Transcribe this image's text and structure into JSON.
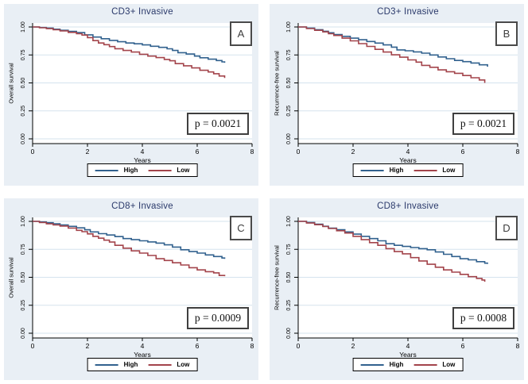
{
  "styles": {
    "panel_bg": "#e9eff5",
    "plot_bg": "#ffffff",
    "grid_color": "#d5e3ee",
    "title_color": "#2b3a6b",
    "axis_color": "#000000",
    "high_color": "#31618e",
    "low_color": "#a3444b"
  },
  "legend": {
    "high_label": "High",
    "low_label": "Low"
  },
  "chart_data": {
    "type": "line",
    "subtype": "kaplan-meier-step",
    "layout": "2x2-grid",
    "xlabel": "Years",
    "xlim": [
      0,
      8
    ],
    "x_ticks": [
      0,
      2,
      4,
      6,
      8
    ],
    "ylim": [
      0,
      1
    ],
    "y_tick_values": [
      0,
      0.25,
      0.5,
      0.75,
      1
    ],
    "y_ticks": [
      "0.00",
      "0.25",
      "0.50",
      "0.75",
      "1.00"
    ],
    "grid": true,
    "legend_entries": [
      "High",
      "Low"
    ],
    "legend_position": "bottom-center",
    "panels": [
      {
        "letter": "A",
        "title": "CD3+ Invasive",
        "ylabel": "Overall survival",
        "p_value": "p = 0.0021",
        "series": [
          {
            "name": "High",
            "color": "#31618e",
            "points": [
              [
                0,
                1
              ],
              [
                0.25,
                0.995
              ],
              [
                0.5,
                0.99
              ],
              [
                0.75,
                0.98
              ],
              [
                1,
                0.97
              ],
              [
                1.3,
                0.96
              ],
              [
                1.6,
                0.95
              ],
              [
                1.9,
                0.93
              ],
              [
                2.2,
                0.91
              ],
              [
                2.5,
                0.895
              ],
              [
                2.8,
                0.88
              ],
              [
                3.1,
                0.868
              ],
              [
                3.4,
                0.857
              ],
              [
                3.7,
                0.85
              ],
              [
                4,
                0.84
              ],
              [
                4.3,
                0.828
              ],
              [
                4.6,
                0.818
              ],
              [
                4.9,
                0.805
              ],
              [
                5.1,
                0.79
              ],
              [
                5.3,
                0.77
              ],
              [
                5.6,
                0.758
              ],
              [
                5.9,
                0.74
              ],
              [
                6.1,
                0.725
              ],
              [
                6.4,
                0.712
              ],
              [
                6.7,
                0.7
              ],
              [
                6.9,
                0.688
              ],
              [
                7,
                0.68
              ]
            ]
          },
          {
            "name": "Low",
            "color": "#a3444b",
            "points": [
              [
                0,
                1
              ],
              [
                0.25,
                0.993
              ],
              [
                0.5,
                0.985
              ],
              [
                0.75,
                0.975
              ],
              [
                1,
                0.965
              ],
              [
                1.3,
                0.952
              ],
              [
                1.6,
                0.94
              ],
              [
                1.8,
                0.928
              ],
              [
                2,
                0.905
              ],
              [
                2.2,
                0.878
              ],
              [
                2.4,
                0.857
              ],
              [
                2.6,
                0.842
              ],
              [
                2.8,
                0.825
              ],
              [
                3,
                0.806
              ],
              [
                3.3,
                0.79
              ],
              [
                3.6,
                0.776
              ],
              [
                3.9,
                0.756
              ],
              [
                4.2,
                0.74
              ],
              [
                4.5,
                0.726
              ],
              [
                4.8,
                0.71
              ],
              [
                5,
                0.698
              ],
              [
                5.2,
                0.672
              ],
              [
                5.5,
                0.653
              ],
              [
                5.8,
                0.634
              ],
              [
                6.1,
                0.613
              ],
              [
                6.4,
                0.598
              ],
              [
                6.6,
                0.582
              ],
              [
                6.8,
                0.562
              ],
              [
                7,
                0.545
              ]
            ]
          }
        ]
      },
      {
        "letter": "B",
        "title": "CD3+ Invasive",
        "ylabel": "Recurrence-free survival",
        "p_value": "p = 0.0021",
        "series": [
          {
            "name": "High",
            "color": "#31618e",
            "points": [
              [
                0,
                1
              ],
              [
                0.3,
                0.99
              ],
              [
                0.6,
                0.976
              ],
              [
                0.9,
                0.962
              ],
              [
                1.1,
                0.948
              ],
              [
                1.3,
                0.932
              ],
              [
                1.6,
                0.916
              ],
              [
                1.9,
                0.9
              ],
              [
                2.2,
                0.886
              ],
              [
                2.5,
                0.87
              ],
              [
                2.8,
                0.856
              ],
              [
                3.1,
                0.84
              ],
              [
                3.4,
                0.82
              ],
              [
                3.6,
                0.795
              ],
              [
                3.9,
                0.787
              ],
              [
                4.2,
                0.777
              ],
              [
                4.5,
                0.766
              ],
              [
                4.8,
                0.75
              ],
              [
                5.1,
                0.732
              ],
              [
                5.4,
                0.716
              ],
              [
                5.7,
                0.701
              ],
              [
                6,
                0.69
              ],
              [
                6.3,
                0.678
              ],
              [
                6.6,
                0.662
              ],
              [
                6.9,
                0.645
              ]
            ]
          },
          {
            "name": "Low",
            "color": "#a3444b",
            "points": [
              [
                0,
                1
              ],
              [
                0.3,
                0.986
              ],
              [
                0.6,
                0.97
              ],
              [
                0.9,
                0.956
              ],
              [
                1.1,
                0.94
              ],
              [
                1.3,
                0.924
              ],
              [
                1.6,
                0.9
              ],
              [
                1.9,
                0.876
              ],
              [
                2.2,
                0.851
              ],
              [
                2.5,
                0.826
              ],
              [
                2.8,
                0.8
              ],
              [
                3.1,
                0.776
              ],
              [
                3.4,
                0.751
              ],
              [
                3.7,
                0.73
              ],
              [
                4,
                0.706
              ],
              [
                4.3,
                0.686
              ],
              [
                4.5,
                0.657
              ],
              [
                4.8,
                0.64
              ],
              [
                5.1,
                0.616
              ],
              [
                5.4,
                0.6
              ],
              [
                5.7,
                0.586
              ],
              [
                6,
                0.566
              ],
              [
                6.3,
                0.546
              ],
              [
                6.6,
                0.526
              ],
              [
                6.8,
                0.5
              ]
            ]
          }
        ]
      },
      {
        "letter": "C",
        "title": "CD8+ Invasive",
        "ylabel": "Overall survival",
        "p_value": "p = 0.0009",
        "series": [
          {
            "name": "High",
            "color": "#31618e",
            "points": [
              [
                0,
                1
              ],
              [
                0.25,
                0.995
              ],
              [
                0.5,
                0.988
              ],
              [
                0.75,
                0.978
              ],
              [
                1,
                0.968
              ],
              [
                1.3,
                0.955
              ],
              [
                1.6,
                0.942
              ],
              [
                1.9,
                0.925
              ],
              [
                2.1,
                0.906
              ],
              [
                2.4,
                0.89
              ],
              [
                2.7,
                0.878
              ],
              [
                3,
                0.864
              ],
              [
                3.3,
                0.846
              ],
              [
                3.6,
                0.836
              ],
              [
                3.9,
                0.826
              ],
              [
                4.2,
                0.816
              ],
              [
                4.5,
                0.806
              ],
              [
                4.8,
                0.79
              ],
              [
                5.1,
                0.77
              ],
              [
                5.4,
                0.746
              ],
              [
                5.7,
                0.73
              ],
              [
                6,
                0.716
              ],
              [
                6.3,
                0.7
              ],
              [
                6.6,
                0.686
              ],
              [
                6.9,
                0.672
              ],
              [
                7,
                0.665
              ]
            ]
          },
          {
            "name": "Low",
            "color": "#a3444b",
            "points": [
              [
                0,
                1
              ],
              [
                0.25,
                0.99
              ],
              [
                0.5,
                0.978
              ],
              [
                0.75,
                0.968
              ],
              [
                1,
                0.958
              ],
              [
                1.3,
                0.94
              ],
              [
                1.6,
                0.92
              ],
              [
                1.8,
                0.908
              ],
              [
                2,
                0.888
              ],
              [
                2.2,
                0.866
              ],
              [
                2.4,
                0.85
              ],
              [
                2.6,
                0.832
              ],
              [
                2.8,
                0.815
              ],
              [
                3,
                0.786
              ],
              [
                3.3,
                0.76
              ],
              [
                3.6,
                0.736
              ],
              [
                3.9,
                0.716
              ],
              [
                4.2,
                0.695
              ],
              [
                4.5,
                0.666
              ],
              [
                4.8,
                0.65
              ],
              [
                5.1,
                0.63
              ],
              [
                5.4,
                0.61
              ],
              [
                5.7,
                0.586
              ],
              [
                6,
                0.566
              ],
              [
                6.3,
                0.55
              ],
              [
                6.6,
                0.54
              ],
              [
                6.8,
                0.516
              ],
              [
                7,
                0.51
              ]
            ]
          }
        ]
      },
      {
        "letter": "D",
        "title": "CD8+ Invasive",
        "ylabel": "Recurrence-free survival",
        "p_value": "p = 0.0008",
        "series": [
          {
            "name": "High",
            "color": "#31618e",
            "points": [
              [
                0,
                1
              ],
              [
                0.3,
                0.99
              ],
              [
                0.6,
                0.975
              ],
              [
                0.9,
                0.956
              ],
              [
                1.1,
                0.94
              ],
              [
                1.4,
                0.925
              ],
              [
                1.7,
                0.906
              ],
              [
                2,
                0.886
              ],
              [
                2.3,
                0.866
              ],
              [
                2.6,
                0.846
              ],
              [
                2.9,
                0.826
              ],
              [
                3.2,
                0.8
              ],
              [
                3.5,
                0.786
              ],
              [
                3.8,
                0.776
              ],
              [
                4.1,
                0.766
              ],
              [
                4.4,
                0.756
              ],
              [
                4.7,
                0.746
              ],
              [
                5,
                0.726
              ],
              [
                5.3,
                0.706
              ],
              [
                5.6,
                0.686
              ],
              [
                5.9,
                0.666
              ],
              [
                6.2,
                0.656
              ],
              [
                6.5,
                0.64
              ],
              [
                6.8,
                0.626
              ],
              [
                6.9,
                0.62
              ]
            ]
          },
          {
            "name": "Low",
            "color": "#a3444b",
            "points": [
              [
                0,
                1
              ],
              [
                0.3,
                0.985
              ],
              [
                0.6,
                0.97
              ],
              [
                0.9,
                0.954
              ],
              [
                1.1,
                0.936
              ],
              [
                1.4,
                0.916
              ],
              [
                1.7,
                0.896
              ],
              [
                2,
                0.866
              ],
              [
                2.3,
                0.836
              ],
              [
                2.6,
                0.81
              ],
              [
                2.9,
                0.786
              ],
              [
                3.2,
                0.756
              ],
              [
                3.5,
                0.73
              ],
              [
                3.8,
                0.71
              ],
              [
                4.1,
                0.676
              ],
              [
                4.4,
                0.646
              ],
              [
                4.7,
                0.616
              ],
              [
                5,
                0.59
              ],
              [
                5.3,
                0.566
              ],
              [
                5.6,
                0.546
              ],
              [
                5.9,
                0.526
              ],
              [
                6.2,
                0.506
              ],
              [
                6.5,
                0.49
              ],
              [
                6.7,
                0.476
              ],
              [
                6.8,
                0.46
              ]
            ]
          }
        ]
      }
    ]
  }
}
